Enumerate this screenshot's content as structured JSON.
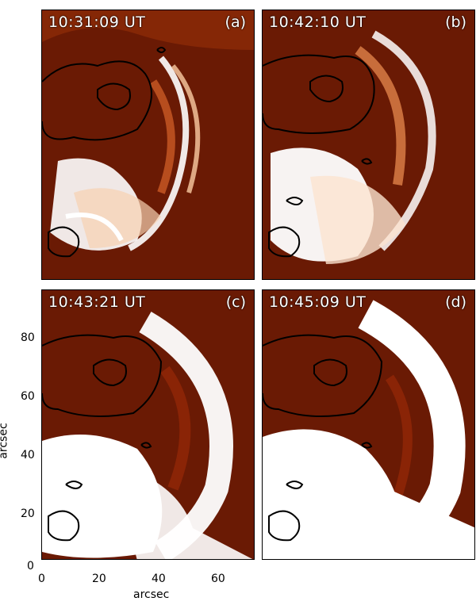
{
  "panels": [
    {
      "time": "10:31:09 UT",
      "label": "(a)"
    },
    {
      "time": "10:42:10 UT",
      "label": "(b)"
    },
    {
      "time": "10:43:21 UT",
      "label": "(c)"
    },
    {
      "time": "10:45:09 UT",
      "label": "(d)"
    }
  ],
  "axes": {
    "xlabel": "arcsec",
    "ylabel": "arcsec",
    "x_ticks": [
      "0",
      "20",
      "40",
      "60"
    ],
    "y_ticks": [
      "0",
      "20",
      "40",
      "60",
      "80"
    ]
  },
  "colors": {
    "background": "#6a1a04",
    "bright": "#ffffff",
    "mid": "#c04a12",
    "contour": "#000000"
  }
}
